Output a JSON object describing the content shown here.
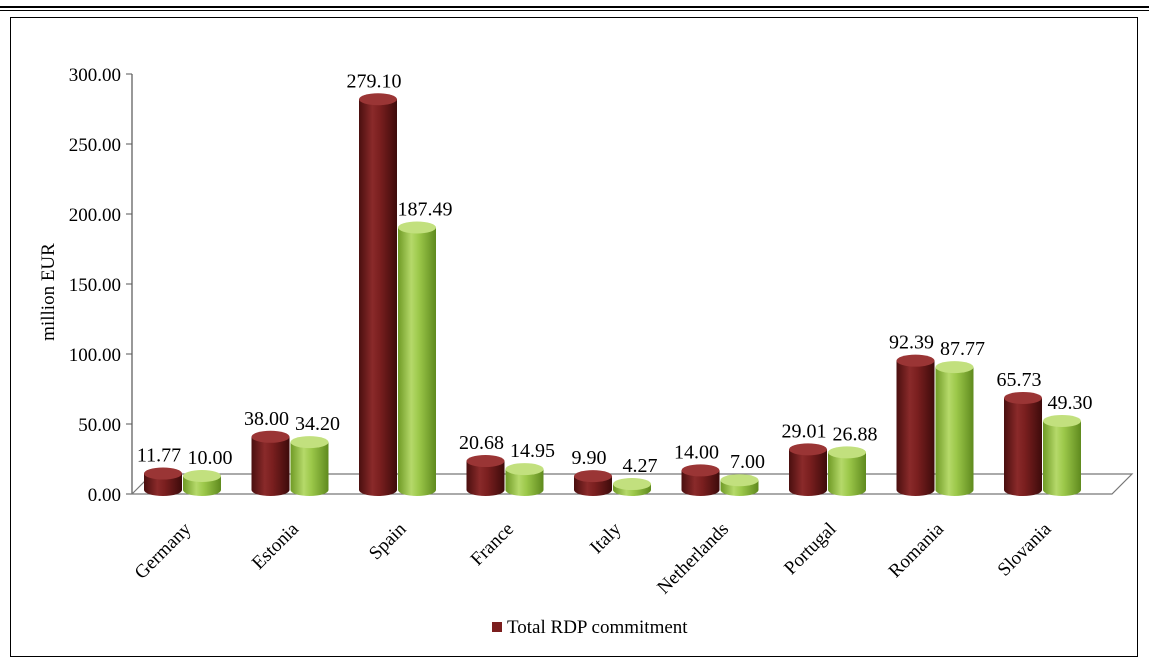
{
  "chart_data": {
    "type": "bar",
    "ylabel": "million EUR",
    "ylim": [
      0,
      300
    ],
    "yticks": [
      "0.00",
      "50.00",
      "100.00",
      "150.00",
      "200.00",
      "250.00",
      "300.00"
    ],
    "categories": [
      "Germany",
      "Estonia",
      "Spain",
      "France",
      "Italy",
      "Netherlands",
      "Portugal",
      "Romania",
      "Slovania"
    ],
    "series": [
      {
        "name": "Total RDP commitment",
        "color": "#7B1E1E",
        "values": [
          11.77,
          38.0,
          279.1,
          20.68,
          9.9,
          14.0,
          29.01,
          92.39,
          65.73
        ],
        "labels": [
          "11.77",
          "38.00",
          "279.10",
          "20.68",
          "9.90",
          "14.00",
          "29.01",
          "92.39",
          "65.73"
        ]
      },
      {
        "color": "#8DB83A",
        "values": [
          10.0,
          34.2,
          187.49,
          14.95,
          4.27,
          7.0,
          26.88,
          87.77,
          49.3
        ],
        "labels": [
          "10.00",
          "34.20",
          "187.49",
          "14.95",
          "4.27",
          "7.00",
          "26.88",
          "87.77",
          "49.30"
        ]
      }
    ],
    "legend_position": "bottom",
    "grid": false
  }
}
